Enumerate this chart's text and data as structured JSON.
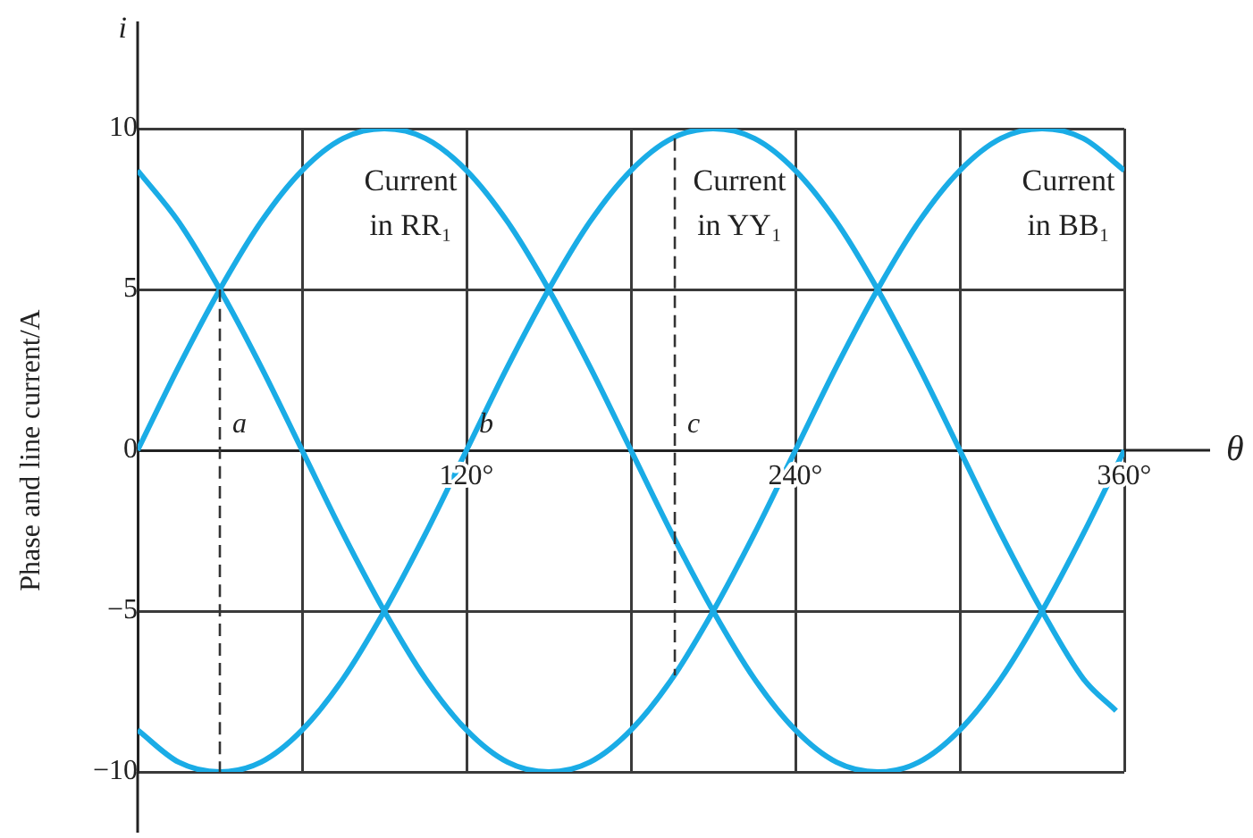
{
  "chart_data": {
    "type": "line",
    "xlabel": "θ",
    "ylabel": "Phase and line current/A",
    "xlim": [
      0,
      360
    ],
    "ylim": [
      -10,
      10
    ],
    "xticks": [
      {
        "value": 0,
        "label": null
      },
      {
        "value": 60,
        "label": null
      },
      {
        "value": 120,
        "label": "120°"
      },
      {
        "value": 180,
        "label": null
      },
      {
        "value": 240,
        "label": "240°"
      },
      {
        "value": 300,
        "label": null
      },
      {
        "value": 360,
        "label": "360°"
      }
    ],
    "yticks": [
      {
        "value": -10,
        "label": "−10"
      },
      {
        "value": -5,
        "label": "−5"
      },
      0,
      5,
      10
    ],
    "grid": true,
    "legend": false,
    "marker": "none",
    "x": [
      0,
      15,
      30,
      45,
      60,
      75,
      90,
      105,
      120,
      135,
      150,
      165,
      180,
      195,
      210,
      225,
      240,
      255,
      270,
      285,
      300,
      315,
      330,
      345,
      360
    ],
    "series": [
      {
        "color": "#1aace6",
        "values": [
          0,
          2.6,
          5,
          7.1,
          8.7,
          9.7,
          10,
          9.7,
          8.7,
          7.1,
          5,
          2.6,
          0,
          -2.6,
          -5,
          -7.1,
          -8.7,
          -9.7,
          -10,
          -9.7,
          -8.7,
          -7.1,
          -5,
          -2.6,
          0
        ]
      },
      {
        "color": "#1aace6",
        "x": [
          0,
          15,
          30,
          45,
          60,
          75,
          90,
          105,
          120,
          135,
          150,
          165,
          180,
          195,
          210,
          225,
          240,
          255,
          270,
          285,
          300,
          315,
          330,
          345,
          357
        ],
        "values": [
          -8.7,
          -9.7,
          -10,
          -9.7,
          -8.7,
          -7.1,
          -5,
          -2.6,
          0,
          2.6,
          5,
          7.1,
          8.7,
          9.7,
          10,
          9.7,
          8.7,
          7.1,
          5,
          2.6,
          0,
          -2.6,
          -5,
          -7.1,
          -8.1
        ]
      },
      {
        "color": "#1aace6",
        "values": [
          8.7,
          7.1,
          5,
          2.6,
          0,
          -2.6,
          -5,
          -7.1,
          -8.7,
          -9.7,
          -10,
          -9.7,
          -8.7,
          -7.1,
          -5,
          -2.6,
          0,
          2.6,
          5,
          7.1,
          8.7,
          9.7,
          10,
          9.7,
          8.7
        ]
      },
      {
        "color": "#333333",
        "line_style": "dashed",
        "x": [
          30,
          30
        ],
        "values": [
          5,
          -10
        ]
      },
      {
        "color": "#333333",
        "line_style": "dashed",
        "x": [
          196,
          196
        ],
        "values": [
          9.7,
          -7.0
        ]
      }
    ],
    "annotations": [
      "i",
      "Current\nin RR₁",
      "Current\nin YY₁",
      "Current\nin BB₁",
      {
        "text": "a",
        "x": 30,
        "y": 0
      },
      {
        "text": "b",
        "x": 120,
        "y": 0
      },
      {
        "text": "c",
        "x": 196,
        "y": 0
      }
    ]
  }
}
